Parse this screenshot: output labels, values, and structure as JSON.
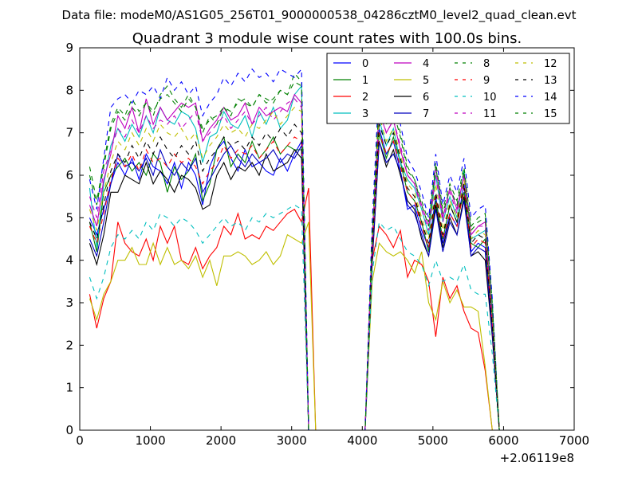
{
  "figure": {
    "suptitle": "Data file: modeM0/AS1G05_256T01_9000000538_04286cztM0_level2_quad_clean.evt"
  },
  "chart_data": {
    "type": "line",
    "title": "Quadrant 3 module wise count rates with 100.0s bins.",
    "xlabel": "",
    "ylabel": "",
    "x_offset_label": "+2.06119e8",
    "xlim": [
      0,
      7000
    ],
    "ylim": [
      0,
      9
    ],
    "xticks": [
      0,
      1000,
      2000,
      3000,
      4000,
      5000,
      6000,
      7000
    ],
    "yticks": [
      0,
      1,
      2,
      3,
      4,
      5,
      6,
      7,
      8,
      9
    ],
    "grid": false,
    "legend_position": "top-right",
    "legend_columns": 4,
    "x": [
      140,
      240,
      340,
      440,
      540,
      640,
      740,
      840,
      940,
      1040,
      1140,
      1240,
      1340,
      1440,
      1540,
      1640,
      1740,
      1840,
      1940,
      2040,
      2140,
      2240,
      2340,
      2440,
      2540,
      2640,
      2740,
      2840,
      2940,
      3040,
      3140,
      3240,
      3340,
      3440,
      3540,
      3640,
      3740,
      3840,
      3940,
      4040,
      4140,
      4240,
      4340,
      4440,
      4540,
      4640,
      4740,
      4840,
      4940,
      5040,
      5140,
      5240,
      5340,
      5440,
      5540,
      5640,
      5740,
      5840,
      5940,
      6040
    ],
    "series": [
      {
        "name": "0",
        "color": "#0000ff",
        "dash": "solid",
        "values": [
          5.0,
          4.6,
          5.2,
          5.8,
          6.3,
          6.0,
          6.4,
          5.9,
          6.5,
          6.2,
          6.1,
          5.8,
          6.3,
          5.7,
          6.3,
          6.0,
          5.3,
          6.2,
          6.6,
          6.8,
          6.4,
          6.1,
          6.6,
          6.2,
          6.3,
          6.1,
          6.0,
          6.4,
          6.1,
          6.5,
          6.8,
          0,
          0,
          0,
          0,
          0,
          0,
          0,
          0,
          0,
          4.2,
          7.1,
          6.5,
          6.8,
          6.1,
          5.2,
          5.3,
          4.7,
          4.3,
          5.5,
          4.4,
          5.1,
          4.8,
          5.8,
          4.2,
          4.4,
          4.3,
          2.4,
          0,
          0
        ]
      },
      {
        "name": "1",
        "color": "#008000",
        "dash": "solid",
        "values": [
          4.9,
          4.2,
          5.6,
          6.0,
          6.2,
          6.4,
          6.1,
          6.3,
          6.0,
          6.5,
          6.3,
          5.6,
          6.2,
          5.9,
          6.1,
          6.5,
          5.4,
          5.8,
          6.6,
          6.9,
          6.2,
          6.5,
          6.3,
          6.8,
          6.4,
          6.6,
          6.9,
          6.5,
          6.7,
          6.6,
          6.6,
          0,
          0,
          0,
          0,
          0,
          0,
          0,
          0,
          0,
          4.1,
          7.0,
          6.4,
          6.9,
          6.3,
          5.6,
          5.4,
          4.9,
          4.2,
          5.4,
          4.5,
          5.3,
          4.9,
          5.6,
          4.4,
          4.3,
          4.5,
          2.5,
          0,
          0
        ]
      },
      {
        "name": "2",
        "color": "#ff0000",
        "dash": "solid",
        "values": [
          3.2,
          2.4,
          3.1,
          3.5,
          4.9,
          4.4,
          4.2,
          4.1,
          4.5,
          4.0,
          4.8,
          4.4,
          4.8,
          4.0,
          3.9,
          4.3,
          3.8,
          4.1,
          4.3,
          4.8,
          4.6,
          5.1,
          4.5,
          4.6,
          4.5,
          4.8,
          4.7,
          4.9,
          5.1,
          5.2,
          4.9,
          5.7,
          0,
          0,
          0,
          0,
          0,
          0,
          0,
          0,
          4.0,
          4.8,
          4.6,
          4.3,
          4.7,
          3.6,
          4.0,
          3.9,
          3.5,
          2.2,
          3.6,
          3.1,
          3.4,
          2.8,
          2.4,
          2.3,
          1.4,
          0,
          0,
          0
        ]
      },
      {
        "name": "3",
        "color": "#00bfbf",
        "dash": "solid",
        "values": [
          5.7,
          4.3,
          5.8,
          6.7,
          7.1,
          6.8,
          7.2,
          6.9,
          7.4,
          7.0,
          7.6,
          7.3,
          7.2,
          7.5,
          7.4,
          7.1,
          6.3,
          6.9,
          7.0,
          7.5,
          7.2,
          7.1,
          7.4,
          6.9,
          7.5,
          7.2,
          7.6,
          7.1,
          7.3,
          7.9,
          8.1,
          0,
          0,
          0,
          0,
          0,
          0,
          0,
          0,
          0,
          4.3,
          7.3,
          6.7,
          7.1,
          6.3,
          5.9,
          5.7,
          5.2,
          4.6,
          6.0,
          4.9,
          5.5,
          5.0,
          6.1,
          4.5,
          4.6,
          4.7,
          2.8,
          0,
          0
        ]
      },
      {
        "name": "4",
        "color": "#bf00bf",
        "dash": "solid",
        "values": [
          5.3,
          4.8,
          5.9,
          6.5,
          7.4,
          7.1,
          7.6,
          7.0,
          7.8,
          7.2,
          7.6,
          7.3,
          7.5,
          7.7,
          7.6,
          7.7,
          6.8,
          7.1,
          7.3,
          7.6,
          7.3,
          7.4,
          7.7,
          7.2,
          7.6,
          7.4,
          7.5,
          7.6,
          7.5,
          7.9,
          7.7,
          0,
          0,
          0,
          0,
          0,
          0,
          0,
          0,
          0,
          4.5,
          7.5,
          7.0,
          7.3,
          6.6,
          6.0,
          5.8,
          5.3,
          4.8,
          6.2,
          5.0,
          5.7,
          5.2,
          6.0,
          4.6,
          4.8,
          4.9,
          2.6,
          0,
          0
        ]
      },
      {
        "name": "5",
        "color": "#bfbf00",
        "dash": "solid",
        "values": [
          3.1,
          2.6,
          3.2,
          3.5,
          4.0,
          4.0,
          4.3,
          3.9,
          3.9,
          4.4,
          3.9,
          4.3,
          3.9,
          4.0,
          3.8,
          4.1,
          3.6,
          4.0,
          3.4,
          4.1,
          4.1,
          4.2,
          4.1,
          3.9,
          4.0,
          4.2,
          3.9,
          4.1,
          4.6,
          4.5,
          4.4,
          4.9,
          0,
          0,
          0,
          0,
          0,
          0,
          0,
          0,
          3.5,
          4.4,
          4.2,
          4.1,
          4.2,
          4.0,
          3.7,
          4.2,
          3.0,
          2.6,
          3.5,
          3.0,
          3.3,
          2.9,
          2.9,
          2.8,
          1.5,
          0,
          0,
          0
        ]
      },
      {
        "name": "6",
        "color": "#000000",
        "dash": "solid",
        "values": [
          4.4,
          3.9,
          4.6,
          5.6,
          5.6,
          6.0,
          5.9,
          5.8,
          6.3,
          5.8,
          6.1,
          5.9,
          5.6,
          6.0,
          5.9,
          5.7,
          5.2,
          5.3,
          6.0,
          6.3,
          5.9,
          6.2,
          6.1,
          6.3,
          6.0,
          6.5,
          6.1,
          6.2,
          6.3,
          6.6,
          6.4,
          0,
          0,
          0,
          0,
          0,
          0,
          0,
          0,
          0,
          3.9,
          6.8,
          6.2,
          6.6,
          6.0,
          5.4,
          5.2,
          4.5,
          4.1,
          5.3,
          4.3,
          5.0,
          4.6,
          5.5,
          4.1,
          4.2,
          4.0,
          2.2,
          0,
          0
        ]
      },
      {
        "name": "7",
        "color": "#0000bf",
        "dash": "solid",
        "values": [
          4.5,
          4.1,
          4.9,
          5.8,
          6.5,
          6.2,
          6.3,
          6.1,
          6.4,
          6.0,
          6.6,
          6.2,
          6.0,
          6.3,
          6.1,
          6.4,
          5.6,
          5.9,
          6.2,
          6.5,
          6.7,
          6.4,
          6.2,
          6.5,
          6.3,
          6.4,
          6.6,
          6.3,
          6.5,
          6.4,
          6.7,
          0,
          0,
          0,
          0,
          0,
          0,
          0,
          0,
          0,
          4.0,
          6.8,
          6.3,
          6.5,
          6.1,
          5.3,
          5.1,
          4.6,
          4.1,
          5.2,
          4.2,
          4.9,
          4.6,
          5.4,
          4.1,
          4.3,
          4.2,
          2.3,
          0,
          0
        ]
      },
      {
        "name": "8",
        "color": "#008000",
        "dash": "dash",
        "values": [
          6.2,
          5.4,
          6.3,
          7.2,
          7.6,
          7.4,
          7.8,
          7.5,
          7.7,
          7.4,
          7.9,
          8.1,
          7.8,
          7.6,
          7.9,
          7.6,
          7.0,
          7.4,
          7.2,
          7.6,
          7.4,
          7.8,
          7.7,
          7.6,
          7.9,
          7.8,
          7.7,
          8.0,
          7.9,
          8.4,
          8.2,
          0,
          0,
          0,
          0,
          0,
          0,
          0,
          0,
          0,
          4.7,
          7.9,
          7.3,
          7.6,
          7.0,
          6.2,
          5.9,
          5.4,
          4.9,
          6.3,
          5.2,
          5.8,
          5.4,
          6.2,
          4.8,
          5.0,
          5.1,
          3.0,
          0,
          0
        ]
      },
      {
        "name": "9",
        "color": "#ff0000",
        "dash": "dash",
        "values": [
          4.8,
          4.4,
          5.1,
          5.9,
          6.4,
          6.2,
          6.5,
          6.1,
          6.6,
          6.3,
          6.4,
          6.2,
          6.5,
          6.3,
          6.4,
          6.2,
          5.8,
          6.1,
          6.3,
          6.7,
          6.4,
          6.6,
          6.5,
          6.7,
          6.4,
          6.6,
          6.8,
          6.5,
          6.7,
          6.9,
          6.8,
          0,
          0,
          0,
          0,
          0,
          0,
          0,
          0,
          0,
          4.2,
          7.0,
          6.5,
          6.8,
          6.2,
          5.6,
          5.4,
          4.8,
          4.3,
          5.5,
          4.5,
          5.1,
          4.8,
          5.7,
          4.3,
          4.5,
          4.4,
          2.5,
          0,
          0
        ]
      },
      {
        "name": "10",
        "color": "#00bfbf",
        "dash": "dash",
        "values": [
          3.6,
          3.1,
          3.6,
          4.3,
          4.6,
          4.5,
          4.7,
          4.5,
          4.9,
          4.7,
          5.1,
          5.0,
          4.8,
          5.0,
          4.9,
          4.7,
          4.4,
          4.6,
          4.8,
          5.0,
          4.8,
          4.9,
          4.7,
          5.0,
          4.9,
          5.1,
          5.0,
          5.1,
          5.2,
          5.3,
          5.2,
          0,
          0,
          0,
          0,
          0,
          0,
          0,
          0,
          0,
          3.7,
          4.9,
          4.7,
          4.8,
          4.5,
          4.2,
          4.1,
          3.9,
          3.4,
          4.0,
          3.5,
          3.6,
          3.5,
          3.9,
          3.3,
          3.2,
          3.2,
          1.8,
          0,
          0
        ]
      },
      {
        "name": "11",
        "color": "#bf00bf",
        "dash": "dash",
        "values": [
          5.5,
          5.0,
          6.1,
          6.6,
          7.1,
          6.9,
          7.3,
          7.0,
          7.4,
          7.1,
          7.3,
          7.2,
          7.4,
          7.1,
          7.3,
          7.5,
          6.8,
          7.0,
          7.2,
          7.4,
          7.1,
          7.3,
          7.5,
          7.2,
          7.4,
          7.6,
          7.3,
          7.5,
          7.7,
          7.8,
          7.6,
          0,
          0,
          0,
          0,
          0,
          0,
          0,
          0,
          0,
          4.5,
          7.6,
          7.0,
          7.3,
          6.7,
          6.0,
          5.8,
          5.2,
          4.7,
          6.0,
          4.9,
          5.6,
          5.1,
          6.0,
          4.6,
          4.8,
          4.8,
          2.7,
          0,
          0
        ]
      },
      {
        "name": "12",
        "color": "#bfbf00",
        "dash": "dash",
        "values": [
          5.2,
          4.7,
          5.6,
          6.3,
          6.8,
          6.6,
          7.0,
          6.7,
          7.1,
          6.8,
          7.2,
          7.0,
          6.9,
          7.1,
          6.8,
          7.0,
          6.4,
          6.7,
          6.9,
          7.2,
          7.0,
          7.1,
          6.9,
          7.2,
          7.1,
          7.3,
          7.5,
          7.2,
          7.4,
          7.6,
          7.5,
          0,
          0,
          0,
          0,
          0,
          0,
          0,
          0,
          0,
          4.3,
          7.4,
          6.8,
          7.1,
          6.5,
          5.8,
          5.6,
          5.0,
          4.5,
          5.8,
          4.7,
          5.4,
          5.0,
          5.9,
          4.5,
          4.7,
          4.6,
          2.6,
          0,
          0
        ]
      },
      {
        "name": "13",
        "color": "#000000",
        "dash": "dash",
        "values": [
          4.9,
          4.5,
          5.3,
          6.1,
          6.5,
          6.3,
          6.7,
          6.4,
          6.8,
          6.5,
          6.9,
          6.6,
          6.4,
          6.7,
          6.5,
          6.8,
          6.1,
          6.4,
          6.6,
          6.9,
          6.7,
          6.8,
          6.6,
          6.9,
          6.7,
          7.0,
          6.8,
          7.1,
          6.9,
          7.2,
          7.0,
          0,
          0,
          0,
          0,
          0,
          0,
          0,
          0,
          0,
          4.3,
          7.2,
          6.7,
          7.0,
          6.4,
          5.7,
          5.5,
          4.9,
          4.4,
          5.6,
          4.6,
          5.3,
          4.9,
          5.8,
          4.4,
          4.6,
          4.5,
          2.5,
          0,
          0
        ]
      },
      {
        "name": "14",
        "color": "#0000ff",
        "dash": "dash",
        "values": [
          5.9,
          5.2,
          6.4,
          7.6,
          7.8,
          7.9,
          7.7,
          8.0,
          7.9,
          8.1,
          7.8,
          8.3,
          8.0,
          8.2,
          7.9,
          8.1,
          7.4,
          7.7,
          7.9,
          8.3,
          8.1,
          8.4,
          8.2,
          8.5,
          8.3,
          8.4,
          8.2,
          8.5,
          8.4,
          8.3,
          8.5,
          0,
          0,
          0,
          0,
          0,
          0,
          0,
          0,
          0,
          4.9,
          8.2,
          7.6,
          7.9,
          7.2,
          6.4,
          6.1,
          5.6,
          5.0,
          6.5,
          5.3,
          6.0,
          5.6,
          6.4,
          5.0,
          5.2,
          5.3,
          3.1,
          0,
          0
        ]
      },
      {
        "name": "15",
        "color": "#008000",
        "dash": "dash",
        "values": [
          6.0,
          5.3,
          6.2,
          7.1,
          7.5,
          7.3,
          7.6,
          7.4,
          7.7,
          7.5,
          7.8,
          7.9,
          7.7,
          7.5,
          7.8,
          7.6,
          7.1,
          7.3,
          7.4,
          7.6,
          7.5,
          7.7,
          7.8,
          7.6,
          7.9,
          7.7,
          7.8,
          8.0,
          7.9,
          8.2,
          8.1,
          0,
          0,
          0,
          0,
          0,
          0,
          0,
          0,
          0,
          4.6,
          7.8,
          7.2,
          7.5,
          6.9,
          6.1,
          5.9,
          5.3,
          4.8,
          6.2,
          5.1,
          5.7,
          5.3,
          6.1,
          4.7,
          4.9,
          5.0,
          2.9,
          0,
          0
        ]
      }
    ]
  }
}
